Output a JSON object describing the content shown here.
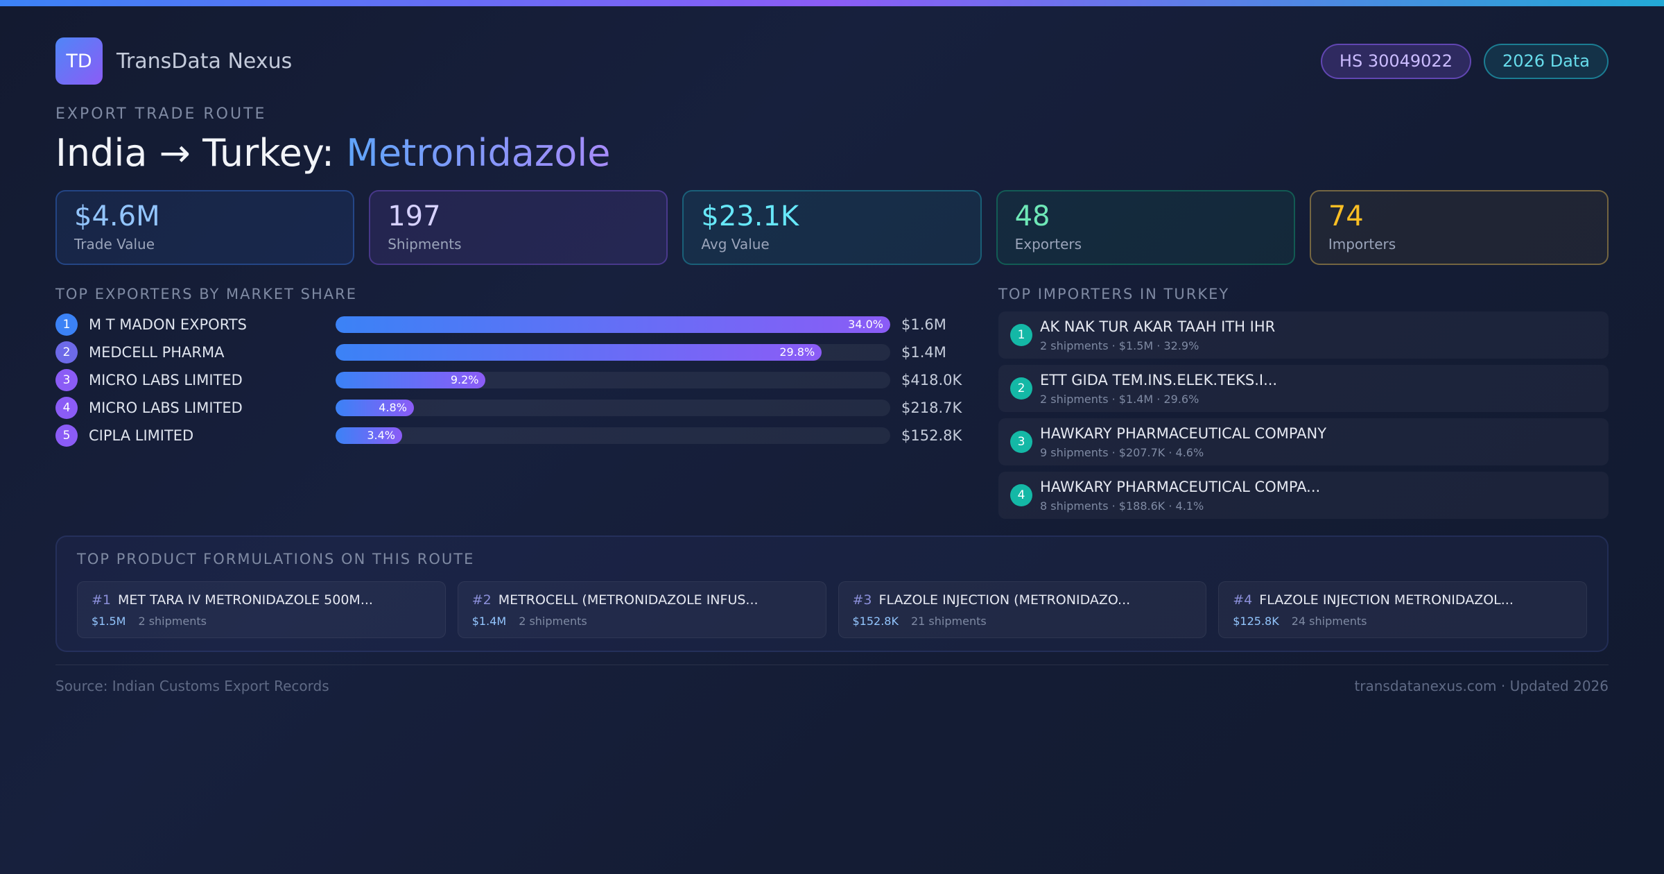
{
  "brand": {
    "logo_text": "TD",
    "name": "TransData Nexus"
  },
  "badges": {
    "hs_code": "HS 30049022",
    "year": "2026 Data"
  },
  "route": {
    "eyebrow": "EXPORT TRADE ROUTE",
    "title_prefix": "India → Turkey: ",
    "product": "Metronidazole"
  },
  "stats": [
    {
      "value": "$4.6M",
      "label": "Trade Value",
      "color": "#93c5fd"
    },
    {
      "value": "197",
      "label": "Shipments",
      "color": "#d7d2ff"
    },
    {
      "value": "$23.1K",
      "label": "Avg Value",
      "color": "#67e8f9"
    },
    {
      "value": "48",
      "label": "Exporters",
      "color": "#6ee7b7"
    },
    {
      "value": "74",
      "label": "Importers",
      "color": "#fbbf24"
    }
  ],
  "exporters": {
    "title": "TOP EXPORTERS BY MARKET SHARE",
    "rows": [
      {
        "rank": "1",
        "name": "M T MADON EXPORTS",
        "share": 34.0,
        "share_label": "34.0%",
        "value": "$1.6M",
        "dot_color": "#3b82f6"
      },
      {
        "rank": "2",
        "name": "MEDCELL PHARMA",
        "share": 29.8,
        "share_label": "29.8%",
        "value": "$1.4M",
        "dot_color": "#6d6ae8"
      },
      {
        "rank": "3",
        "name": "MICRO LABS LIMITED",
        "share": 9.2,
        "share_label": "9.2%",
        "value": "$418.0K",
        "dot_color": "#8b5cf6"
      },
      {
        "rank": "4",
        "name": "MICRO LABS LIMITED",
        "share": 4.8,
        "share_label": "4.8%",
        "value": "$218.7K",
        "dot_color": "#8b5cf6"
      },
      {
        "rank": "5",
        "name": "CIPLA LIMITED",
        "share": 3.4,
        "share_label": "3.4%",
        "value": "$152.8K",
        "dot_color": "#8b5cf6"
      }
    ]
  },
  "importers": {
    "title": "TOP IMPORTERS IN TURKEY",
    "rows": [
      {
        "rank": "1",
        "name": "AK NAK TUR AKAR TAAH ITH IHR",
        "meta": "2 shipments · $1.5M · 32.9%"
      },
      {
        "rank": "2",
        "name": "ETT GIDA TEM.INS.ELEK.TEKS.I...",
        "meta": "2 shipments · $1.4M · 29.6%"
      },
      {
        "rank": "3",
        "name": "HAWKARY PHARMACEUTICAL COMPANY",
        "meta": "9 shipments · $207.7K · 4.6%"
      },
      {
        "rank": "4",
        "name": "HAWKARY PHARMACEUTICAL COMPA...",
        "meta": "8 shipments · $188.6K · 4.1%"
      }
    ]
  },
  "formulations": {
    "title": "TOP PRODUCT FORMULATIONS ON THIS ROUTE",
    "items": [
      {
        "rank": "#1",
        "name": "MET TARA IV METRONIDAZOLE 500M...",
        "value": "$1.5M",
        "shipments": "2 shipments"
      },
      {
        "rank": "#2",
        "name": "METROCELL (METRONIDAZOLE INFUS...",
        "value": "$1.4M",
        "shipments": "2 shipments"
      },
      {
        "rank": "#3",
        "name": "FLAZOLE INJECTION (METRONIDAZO...",
        "value": "$152.8K",
        "shipments": "21 shipments"
      },
      {
        "rank": "#4",
        "name": "FLAZOLE INJECTION METRONIDAZOL...",
        "value": "$125.8K",
        "shipments": "24 shipments"
      }
    ]
  },
  "footer": {
    "source": "Source: Indian Customs Export Records",
    "site": "transdatanexus.com · Updated 2026"
  }
}
